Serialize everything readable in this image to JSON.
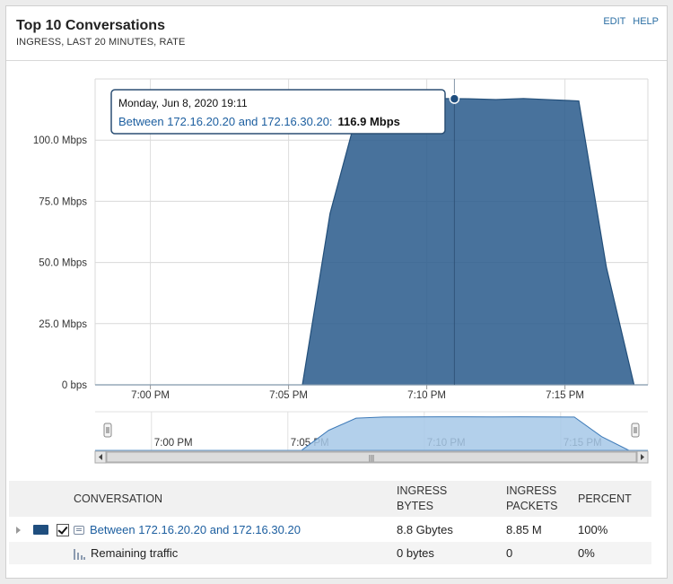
{
  "widget": {
    "title": "Top 10 Conversations",
    "subtitle": "INGRESS, LAST 20 MINUTES, RATE",
    "edit_label": "EDIT",
    "help_label": "HELP"
  },
  "chart_data": {
    "type": "area",
    "y_ticks": [
      "0 bps",
      "25.0 Mbps",
      "50.0 Mbps",
      "75.0 Mbps",
      "100.0 Mbps"
    ],
    "y_tick_values": [
      0,
      25,
      50,
      75,
      100
    ],
    "ylim": [
      0,
      125
    ],
    "x_ticks": [
      "7:00 PM",
      "7:05 PM",
      "7:10 PM",
      "7:15 PM"
    ],
    "x_tick_minutes": [
      0,
      5,
      10,
      15
    ],
    "xlim": [
      -2,
      18
    ],
    "grid": true,
    "series": [
      {
        "name": "Between 172.16.20.20 and 172.16.30.20",
        "color": "#2f5f8e",
        "x": [
          -2,
          5.5,
          6.5,
          7.5,
          8.5,
          9.5,
          10.5,
          11.5,
          12.5,
          13.5,
          14.5,
          15.5,
          16.5,
          17.5,
          18
        ],
        "y": [
          0,
          0,
          70,
          112,
          116,
          116.5,
          117,
          116.9,
          116.6,
          117,
          116.5,
          116,
          48,
          0,
          0
        ]
      }
    ],
    "tooltip": {
      "date": "Monday, Jun 8, 2020 19:11",
      "label": "Between 172.16.20.20 and 172.16.30.20:",
      "value": "116.9 Mbps",
      "x": 11,
      "y": 116.9
    },
    "navigator": {
      "x_ticks": [
        "7:00 PM",
        "7:05 PM",
        "7:10 PM",
        "7:15 PM"
      ],
      "color": "#a6c8e8"
    }
  },
  "table": {
    "headers": {
      "conversation": "CONVERSATION",
      "bytes_line1": "INGRESS",
      "bytes_line2": "BYTES",
      "packets_line1": "INGRESS",
      "packets_line2": "PACKETS",
      "percent": "PERCENT"
    },
    "rows": [
      {
        "conversation": "Between 172.16.20.20 and 172.16.30.20",
        "bytes": "8.8 Gbytes",
        "packets": "8.85 M",
        "percent": "100%",
        "color": "#1f4e7e"
      },
      {
        "conversation": "Remaining traffic",
        "bytes": "0 bytes",
        "packets": "0",
        "percent": "0%"
      }
    ]
  }
}
